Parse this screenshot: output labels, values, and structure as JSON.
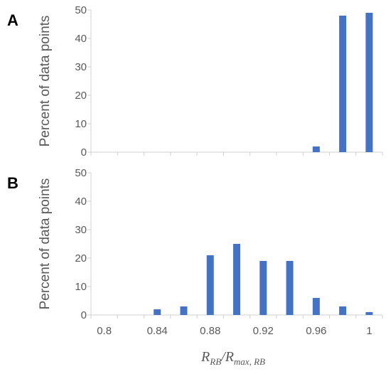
{
  "chart_data": [
    {
      "type": "bar",
      "panel_label": "A",
      "ylabel": "Percent of data points",
      "ylim": [
        0,
        50
      ],
      "yticks": [
        0,
        10,
        20,
        30,
        40,
        50
      ],
      "xticks": [
        "0.8",
        "0.84",
        "0.88",
        "0.92",
        "0.96",
        "1"
      ],
      "tick_labels_visible": false,
      "categories": [
        "0.8",
        "0.82",
        "0.84",
        "0.86",
        "0.88",
        "0.9",
        "0.92",
        "0.94",
        "0.96",
        "0.98",
        "1"
      ],
      "values": [
        0,
        0,
        0,
        0,
        0,
        0,
        0,
        0,
        2,
        48,
        49
      ],
      "color": "#4472C4",
      "grid": false
    },
    {
      "type": "bar",
      "panel_label": "B",
      "ylabel": "Percent of data points",
      "ylim": [
        0,
        50
      ],
      "yticks": [
        0,
        10,
        20,
        30,
        40,
        50
      ],
      "xticks": [
        "0.8",
        "0.84",
        "0.88",
        "0.92",
        "0.96",
        "1"
      ],
      "tick_labels_visible": true,
      "categories": [
        "0.8",
        "0.82",
        "0.84",
        "0.86",
        "0.88",
        "0.9",
        "0.92",
        "0.94",
        "0.96",
        "0.98",
        "1"
      ],
      "values": [
        0,
        0,
        2,
        3,
        21,
        25,
        19,
        19,
        6,
        3,
        1
      ],
      "color": "#4472C4",
      "grid": false,
      "xlabel": {
        "num_main": "R",
        "num_sub": "RB",
        "slash": "/",
        "den_main": "R",
        "den_sub": "max, RB"
      }
    }
  ]
}
